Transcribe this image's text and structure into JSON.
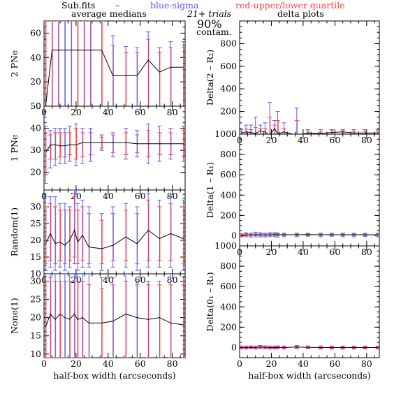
{
  "header": {
    "source": "Sub.fits",
    "dash": "–",
    "blue_legend": "blue-sigma",
    "red_legend": "red-upper/lower quartile",
    "trials": "21+ trials",
    "left_title": "average medians",
    "right_title": "delta plots",
    "contam_value": "90%",
    "contam_label": "contam."
  },
  "colors": {
    "blue": "#5b5bff",
    "red": "#ff4444",
    "line": "#000000"
  },
  "chart_data": [
    {
      "id": "2pne",
      "type": "line",
      "ylabel": "2 PNe",
      "xlabel": "",
      "xlim": [
        0,
        88
      ],
      "ylim": [
        0,
        70
      ],
      "xticks": [
        0,
        20,
        40,
        60,
        80
      ],
      "yticks": [
        0,
        20,
        40,
        60
      ],
      "x": [
        1,
        5,
        9,
        13,
        17,
        21,
        25,
        29,
        36,
        43,
        51,
        58,
        65,
        72,
        79,
        87
      ],
      "values": [
        0,
        46,
        46,
        46,
        46,
        46,
        46,
        46,
        46,
        25,
        25,
        25,
        38,
        28,
        32,
        32
      ],
      "blue_lo": [
        0,
        0,
        0,
        0,
        0,
        0,
        0,
        0,
        0,
        0,
        0,
        0,
        0,
        0,
        0,
        0
      ],
      "blue_hi": [
        70,
        70,
        70,
        70,
        70,
        70,
        70,
        70,
        70,
        58,
        49,
        48,
        61,
        48,
        53,
        53
      ],
      "red_lo": [
        0,
        0,
        0,
        0,
        0,
        0,
        0,
        0,
        0,
        0,
        0,
        0,
        0,
        0,
        0,
        0
      ],
      "red_hi": [
        70,
        70,
        70,
        70,
        70,
        70,
        70,
        70,
        70,
        50,
        44,
        44,
        55,
        44,
        48,
        48
      ]
    },
    {
      "id": "1pne",
      "type": "line",
      "ylabel": "1 PNe",
      "xlabel": "",
      "xlim": [
        0,
        88
      ],
      "ylim": [
        12,
        50
      ],
      "xticks": [
        0,
        20,
        40,
        60,
        80
      ],
      "yticks": [
        20,
        30,
        40,
        50
      ],
      "x": [
        1,
        4,
        7,
        10,
        13,
        16,
        20,
        24,
        29,
        36,
        43,
        51,
        58,
        65,
        72,
        79,
        87
      ],
      "values": [
        29,
        32.5,
        32.5,
        32,
        32,
        32.5,
        32.5,
        33.5,
        33.5,
        33.5,
        33.5,
        33.5,
        33,
        33,
        33,
        33,
        33
      ],
      "blue_lo": [
        15,
        22,
        23,
        24,
        24,
        25,
        23,
        24,
        25,
        30,
        27,
        26,
        27,
        24,
        25,
        26,
        25
      ],
      "blue_hi": [
        41,
        39,
        40,
        40,
        40,
        41,
        42,
        40,
        40,
        37,
        38,
        40,
        39,
        42,
        41,
        40,
        41
      ],
      "red_lo": [
        19,
        26,
        26,
        27,
        27,
        28,
        26,
        27,
        28,
        31,
        29,
        28,
        29,
        27,
        28,
        28,
        27
      ],
      "red_hi": [
        38,
        37,
        38,
        38,
        38,
        38,
        40,
        38,
        38,
        36,
        37,
        38,
        37,
        39,
        38,
        38,
        39
      ]
    },
    {
      "id": "random1",
      "type": "line",
      "ylabel": "Random(1)",
      "xlabel": "",
      "xlim": [
        0,
        88
      ],
      "ylim": [
        10,
        35
      ],
      "xticks": [
        0,
        20,
        40,
        60,
        80
      ],
      "yticks": [
        10,
        15,
        20,
        25,
        30
      ],
      "x": [
        1,
        4,
        7,
        10,
        13,
        16,
        19,
        21,
        24,
        28,
        36,
        43,
        51,
        58,
        65,
        72,
        79,
        87
      ],
      "values": [
        19,
        22,
        19,
        19.5,
        18.5,
        20,
        23,
        19.5,
        21.5,
        18,
        17.5,
        18.5,
        21,
        19,
        23,
        20.5,
        22,
        20.5
      ],
      "blue_lo": [
        11,
        12,
        11,
        12,
        11,
        12,
        13,
        11,
        12,
        12,
        11,
        12,
        12,
        11,
        12,
        12,
        12,
        11
      ],
      "blue_hi": [
        33,
        33,
        33,
        31,
        31,
        30,
        35,
        31,
        32,
        30,
        28,
        30,
        31,
        30,
        34,
        32,
        33,
        32
      ],
      "red_lo": [
        13,
        14,
        13,
        14,
        13,
        14,
        15,
        13,
        14,
        13,
        13,
        14,
        14,
        13,
        14,
        14,
        14,
        13
      ],
      "red_hi": [
        30,
        31,
        30,
        29,
        29,
        29,
        33,
        29,
        30,
        28,
        26,
        28,
        29,
        28,
        32,
        30,
        31,
        30
      ]
    },
    {
      "id": "none1",
      "type": "line",
      "ylabel": "None(1)",
      "xlabel": "half-box width (arcseconds)",
      "xlim": [
        0,
        88
      ],
      "ylim": [
        9,
        32
      ],
      "xticks": [
        0,
        20,
        40,
        60,
        80
      ],
      "yticks": [
        10,
        15,
        20,
        25,
        30
      ],
      "x": [
        1,
        4,
        7,
        10,
        13,
        16,
        19,
        21,
        24,
        28,
        36,
        43,
        51,
        58,
        65,
        72,
        79,
        87
      ],
      "values": [
        17.5,
        21,
        19.5,
        21,
        20,
        19.5,
        21,
        19.5,
        20,
        18.5,
        18.5,
        19,
        21,
        20,
        19.5,
        20,
        18.5,
        18
      ],
      "blue_lo": [
        9,
        9,
        9,
        9,
        9,
        9,
        9,
        9,
        9,
        9,
        9,
        9,
        9,
        9,
        9,
        9,
        9,
        9
      ],
      "blue_hi": [
        32,
        32,
        32,
        32,
        32,
        32,
        32,
        32,
        32,
        32,
        31,
        31,
        32,
        30,
        30,
        30,
        32,
        31
      ],
      "red_lo": [
        9,
        9,
        9,
        9,
        9,
        9,
        9,
        9,
        9,
        9,
        9,
        9,
        9,
        9,
        9,
        9,
        9,
        9
      ],
      "red_hi": [
        30,
        31,
        30,
        30,
        30,
        30,
        30,
        30,
        30,
        29,
        28,
        29,
        30,
        29,
        29,
        29,
        29,
        29
      ]
    },
    {
      "id": "delta2",
      "type": "line",
      "ylabel": "Delta(2 – R₂)",
      "xlabel": "",
      "xlim": [
        0,
        88
      ],
      "ylim": [
        0,
        1000
      ],
      "xticks": [
        0,
        20,
        40,
        60,
        80
      ],
      "yticks": [
        0,
        200,
        400,
        600,
        800
      ],
      "x": [
        1,
        4,
        7,
        10,
        13,
        16,
        19,
        22,
        24,
        28,
        36,
        43,
        51,
        58,
        65,
        72,
        79,
        87
      ],
      "values": [
        10,
        20,
        15,
        5,
        30,
        20,
        -10,
        50,
        0,
        20,
        -10,
        10,
        5,
        15,
        20,
        10,
        10,
        10
      ],
      "blue_lo": [
        -20,
        -30,
        -40,
        -60,
        -30,
        -40,
        -80,
        -20,
        -60,
        -20,
        -30,
        -10,
        -10,
        -10,
        -5,
        -10,
        -10,
        -10
      ],
      "blue_hi": [
        40,
        80,
        80,
        150,
        80,
        100,
        280,
        120,
        200,
        100,
        230,
        40,
        40,
        40,
        40,
        40,
        40,
        40
      ],
      "red_lo": [
        -5,
        -5,
        -10,
        -20,
        -5,
        -10,
        -40,
        0,
        -30,
        0,
        -20,
        0,
        -5,
        0,
        5,
        -5,
        0,
        0
      ],
      "red_hi": [
        25,
        45,
        40,
        60,
        50,
        50,
        150,
        80,
        120,
        50,
        120,
        25,
        20,
        30,
        30,
        25,
        25,
        25
      ]
    },
    {
      "id": "delta1",
      "type": "line",
      "ylabel": "Delta(1 – R₁)",
      "xlabel": "",
      "xlim": [
        0,
        88
      ],
      "ylim": [
        -100,
        1000
      ],
      "xticks": [
        0,
        20,
        40,
        60,
        80
      ],
      "yticks": [
        0,
        200,
        400,
        600,
        800,
        1000
      ],
      "x": [
        1,
        4,
        7,
        10,
        13,
        16,
        19,
        22,
        24,
        28,
        36,
        43,
        51,
        58,
        65,
        72,
        79,
        87
      ],
      "values": [
        5,
        10,
        8,
        12,
        10,
        8,
        10,
        12,
        10,
        10,
        10,
        12,
        10,
        10,
        10,
        10,
        10,
        10
      ],
      "blue_lo": [
        -10,
        -10,
        -12,
        -10,
        -10,
        -12,
        -10,
        -10,
        -12,
        -10,
        -10,
        -5,
        -10,
        -5,
        -10,
        -10,
        -8,
        -10
      ],
      "blue_hi": [
        20,
        30,
        25,
        35,
        30,
        25,
        30,
        30,
        28,
        25,
        25,
        25,
        25,
        25,
        25,
        25,
        25,
        25
      ],
      "red_lo": [
        -5,
        0,
        -2,
        0,
        0,
        -2,
        0,
        2,
        0,
        0,
        0,
        2,
        0,
        2,
        0,
        0,
        0,
        0
      ],
      "red_hi": [
        15,
        20,
        18,
        25,
        20,
        18,
        20,
        22,
        20,
        18,
        18,
        20,
        18,
        18,
        18,
        18,
        18,
        18
      ]
    },
    {
      "id": "delta0",
      "type": "line",
      "ylabel": "Delta(0₁ – R₁)",
      "xlabel": "half-box width (arcseconds)",
      "xlim": [
        0,
        88
      ],
      "ylim": [
        -100,
        1000
      ],
      "xticks": [
        0,
        20,
        40,
        60,
        80
      ],
      "yticks": [
        0,
        200,
        400,
        600,
        800,
        1000
      ],
      "x": [
        1,
        4,
        7,
        10,
        13,
        16,
        19,
        22,
        24,
        28,
        36,
        43,
        51,
        58,
        65,
        72,
        79,
        87
      ],
      "values": [
        0,
        0,
        2,
        0,
        5,
        2,
        0,
        0,
        2,
        0,
        5,
        2,
        0,
        0,
        0,
        0,
        0,
        0
      ],
      "blue_lo": [
        -15,
        -15,
        -12,
        -15,
        -10,
        -12,
        -15,
        -15,
        -12,
        -15,
        -10,
        -12,
        -15,
        -15,
        -15,
        -15,
        -15,
        -15
      ],
      "blue_hi": [
        15,
        15,
        16,
        15,
        20,
        16,
        15,
        15,
        16,
        15,
        20,
        16,
        15,
        15,
        15,
        15,
        15,
        15
      ],
      "red_lo": [
        -8,
        -8,
        -6,
        -8,
        -3,
        -6,
        -8,
        -8,
        -6,
        -8,
        -3,
        -6,
        -8,
        -8,
        -8,
        -8,
        -8,
        -8
      ],
      "red_hi": [
        8,
        8,
        10,
        8,
        13,
        10,
        8,
        8,
        10,
        8,
        13,
        10,
        8,
        8,
        8,
        8,
        8,
        8
      ]
    }
  ]
}
